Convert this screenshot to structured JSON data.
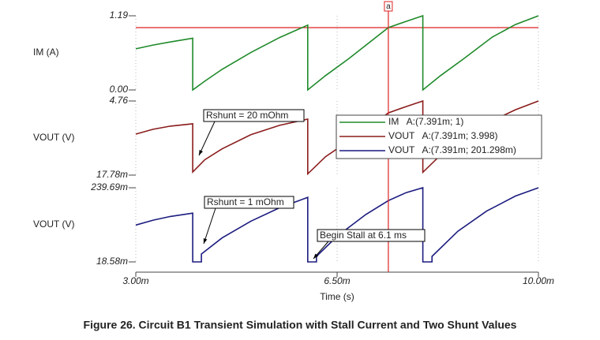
{
  "chart_data": [
    {
      "type": "line",
      "ylabel": "IM (A)",
      "x": [
        0.003,
        0.0033,
        0.0036,
        0.00399,
        0.00399,
        0.0042,
        0.0045,
        0.005,
        0.0055,
        0.00599,
        0.00599,
        0.0063,
        0.0067,
        0.007391,
        0.0077,
        0.00799,
        0.00799,
        0.0083,
        0.0087,
        0.0092,
        0.0096,
        0.01
      ],
      "series": [
        {
          "color": "#1f8a2a",
          "values": [
            0.66,
            0.72,
            0.77,
            0.83,
            0,
            0.14,
            0.33,
            0.6,
            0.84,
            1.04,
            0,
            0.23,
            0.5,
            1,
            1.1,
            1.19,
            0,
            0.23,
            0.5,
            0.85,
            1.05,
            1.19
          ]
        }
      ],
      "hline": 1,
      "xlim": [
        0.003,
        0.01
      ],
      "ylim": [
        0,
        1.19
      ],
      "yticks": [
        {
          "value": 0,
          "label": "0.00"
        },
        1.19
      ]
    },
    {
      "type": "line",
      "ylabel": "VOUT (V)",
      "annotation": "Rshunt = 20 mOhm",
      "x": [
        0.003,
        0.0033,
        0.0036,
        0.00399,
        0.00399,
        0.0042,
        0.0045,
        0.005,
        0.0055,
        0.00599,
        0.00599,
        0.0063,
        0.0067,
        0.007,
        0.007391,
        0.0077,
        0.00799,
        0.00799,
        0.0083,
        0.0087,
        0.0092,
        0.0096,
        0.01
      ],
      "series": [
        {
          "color": "#8b1c1c",
          "values": [
            2.64,
            2.95,
            3.15,
            3.3,
            0.22,
            1.0,
            1.7,
            2.6,
            3.2,
            3.6,
            0.1,
            1.2,
            2.2,
            2.9,
            3.998,
            4.4,
            4.76,
            0.2,
            1.3,
            2.4,
            3.5,
            4.2,
            4.76
          ]
        }
      ],
      "xlim": [
        0.003,
        0.01
      ],
      "ylim": [
        0.01778,
        4.76
      ],
      "yticks": [
        {
          "value": 0.01778,
          "label": "17.78m"
        },
        4.76
      ]
    },
    {
      "type": "line",
      "ylabel": "VOUT (V)",
      "xlabel": "Time (s)",
      "annotation": "Rshunt = 1 mOhm",
      "annotation2": "Begin Stall at 6.1 ms",
      "x": [
        0.003,
        0.0033,
        0.0036,
        0.00399,
        0.00399,
        0.00414,
        0.00414,
        0.0045,
        0.005,
        0.0055,
        0.00599,
        0.00599,
        0.00614,
        0.00614,
        0.0065,
        0.007,
        0.007391,
        0.0077,
        0.00799,
        0.00799,
        0.00815,
        0.00815,
        0.0086,
        0.0091,
        0.0096,
        0.01
      ],
      "series": [
        {
          "color": "#1c1c80",
          "values": [
            0.1285,
            0.143,
            0.154,
            0.164,
            0.01858,
            0.01858,
            0.042,
            0.09,
            0.14,
            0.18,
            0.211,
            0.01858,
            0.01858,
            0.035,
            0.095,
            0.16,
            0.2013,
            0.225,
            0.23969,
            0.01858,
            0.01858,
            0.035,
            0.11,
            0.17,
            0.215,
            0.23969
          ]
        }
      ],
      "xlim": [
        0.003,
        0.01
      ],
      "ylim": [
        0.01858,
        0.23969
      ],
      "yticks": [
        {
          "value": 0.01858,
          "label": "18.58m"
        },
        {
          "value": 0.23969,
          "label": "239.69m"
        }
      ],
      "xticks": [
        {
          "value": 0.003,
          "label": "3.00m"
        },
        {
          "value": 0.0065,
          "label": "6.50m"
        },
        {
          "value": 0.01,
          "label": "10.00m"
        }
      ]
    }
  ],
  "cursor": {
    "label": "a",
    "x": 0.007391,
    "readouts": [
      "IM   A:(7.391m; 1)",
      "VOUT   A:(7.391m; 3.998)",
      "VOUT   A:(7.391m; 201.298m)"
    ]
  },
  "caption": "Figure 26. Circuit B1 Transient Simulation with Stall Current and Two Shunt Values"
}
